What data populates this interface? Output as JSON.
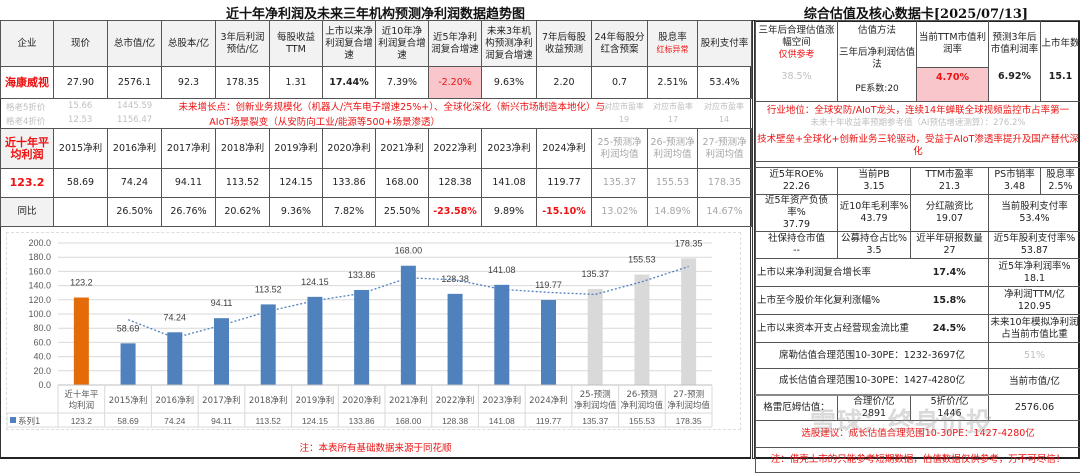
{
  "left_title": "近十年净利润及未来三年机构预测净利润数据趋势图",
  "right_title": "综合估值及核心数据卡[2025/07/13]",
  "main_table": {
    "headers": [
      "企业",
      "现价",
      "总市值/亿",
      "总股本/亿",
      "3年后利润预估/亿",
      "每股收益TTM",
      "上市以来净利润复合增速",
      "近10年净利润复合增速",
      "近5年净利润复合增速",
      "未来3年机构预测净利润复合增速",
      "7年后每股收益预测",
      "24年每股分红含预案",
      "股息率",
      "股利支付率"
    ],
    "dividend_note": "红标异常",
    "row": [
      "海康威视",
      "27.90",
      "2576.1",
      "92.3",
      "178.35",
      "1.31",
      "17.44%",
      "7.39%",
      "-2.20%",
      "9.63%",
      "2.20",
      "0.7",
      "2.51%",
      "53.4%"
    ],
    "graham_rows": [
      [
        "格老5折价",
        "15.66",
        "1445.59"
      ],
      [
        "格老4折价",
        "12.53",
        "1156.47"
      ]
    ],
    "growth_points_line1": "未来增长点：创新业务规模化（机器人/汽车电子增速25%+）、全球化深化（新兴市场制造本地化）与",
    "growth_points_line2": "AIoT场景裂变（从安防向工业/能源等500+场景渗透）",
    "pe_labels": [
      "对应市盈率",
      "对应市盈率",
      "对应市盈率"
    ],
    "pe_values": [
      "19",
      "17",
      "14"
    ]
  },
  "profit_table": {
    "avg_label": "近十年平均利润",
    "headers": [
      "2015净利",
      "2016净利",
      "2017净利",
      "2018净利",
      "2019净利",
      "2020净利",
      "2021净利",
      "2022净利",
      "2023净利",
      "2024净利",
      "25-预测净利润均值",
      "26-预测净利润均值",
      "27-预测净利润均值"
    ],
    "avg_value": "123.2",
    "values": [
      "58.69",
      "74.24",
      "94.11",
      "113.52",
      "124.15",
      "133.86",
      "168.00",
      "128.38",
      "141.08",
      "119.77",
      "135.37",
      "155.53",
      "178.35"
    ],
    "yoy_label": "同比",
    "yoy": [
      "",
      "26.50%",
      "26.76%",
      "20.62%",
      "9.36%",
      "7.82%",
      "25.50%",
      "-23.58%",
      "9.89%",
      "-15.10%",
      "13.02%",
      "14.89%",
      "14.67%"
    ]
  },
  "chart_data": {
    "type": "bar",
    "title": "",
    "categories": [
      "近十年平均利润",
      "2015净利",
      "2016净利",
      "2017净利",
      "2018净利",
      "2019净利",
      "2020净利",
      "2021净利",
      "2022净利",
      "2023净利",
      "2024净利",
      "25-预测净利润均值",
      "26-预测净利润均值",
      "27-预测净利润均值"
    ],
    "series": [
      {
        "name": "系列1",
        "values": [
          123.2,
          58.69,
          74.24,
          94.11,
          113.52,
          124.15,
          133.86,
          168.0,
          128.38,
          141.08,
          119.77,
          135.37,
          155.53,
          178.35
        ]
      }
    ],
    "bar_colors": [
      "#e36c09",
      "#4f81bd",
      "#4f81bd",
      "#4f81bd",
      "#4f81bd",
      "#4f81bd",
      "#4f81bd",
      "#4f81bd",
      "#4f81bd",
      "#4f81bd",
      "#4f81bd",
      "#d9d9d9",
      "#d9d9d9",
      "#d9d9d9"
    ],
    "trendline": "moving average (dotted)",
    "ylim": [
      0,
      200
    ],
    "yticks": [
      "0.0",
      "20.0",
      "40.0",
      "60.0",
      "80.0",
      "100.0",
      "120.0",
      "140.0",
      "160.0",
      "180.0",
      "200.0"
    ],
    "grid": true,
    "legend": "data table below axis",
    "xlabel": "",
    "ylabel": ""
  },
  "chart_note": "注：本表所有基础数据来源于同花顺",
  "legend_label": "系列1",
  "card": {
    "upside_label": "三年后合理估值涨幅空间",
    "upside_note": "仅供参考",
    "upside_value": "38.5%",
    "method_label": "估值方法",
    "method_value": "三年后净利润估值法",
    "pe_coef": "PE系数:20",
    "ttm_yield_label": "当前TTM市值利润率",
    "ttm_yield_value": "4.70%",
    "yield3_label": "预测3年后市值利润率",
    "yield3_value": "6.92%",
    "years_label": "上市年数",
    "years_value": "15.1",
    "industry": "行业地位：全球安防/AIoT龙头，连续14年蝉联全球视频监控市占率第一",
    "ai_ref": "未来十年收益率预期参考值（AI预估增速测算）：276.2%",
    "drivers": "技术壁垒+全球化+创新业务三轮驱动，受益于AIoT渗透率提升及国产替代深化",
    "metrics": [
      [
        {
          "l": "近5年ROE%",
          "v": "22.26"
        },
        {
          "l": "当前PB",
          "v": "3.15"
        },
        {
          "l": "TTM市盈率",
          "v": "21.3"
        },
        {
          "l": "PS市销率",
          "v": "3.48"
        },
        {
          "l": "股息率",
          "v": "2.5%"
        }
      ],
      [
        {
          "l": "近5年资产负债率%",
          "v": "37.79"
        },
        {
          "l": "近10年毛利率%",
          "v": "43.79"
        },
        {
          "l": "分红融资比",
          "v": "19.07"
        },
        {
          "l": "当前股利支付率",
          "v": "53.4%"
        }
      ],
      [
        {
          "l": "社保持仓市值",
          "v": "--"
        },
        {
          "l": "公募持仓占比%",
          "v": "3.5"
        },
        {
          "l": "近半年研报数量",
          "v": "27"
        },
        {
          "l": "近5年股利支付率%",
          "v": "53.87"
        }
      ]
    ],
    "cagr_label": "上市以来净利润复合增长率",
    "cagr_value": "17.4%",
    "net_margin_label": "近5年净利润率%",
    "net_margin_value": "18.1",
    "price_cagr_label": "上市至今股价年化复利涨幅%",
    "price_cagr_value": "15.8%",
    "ttm_profit_label": "净利润TTM/亿",
    "ttm_profit_value": "120.95",
    "capex_label": "上市以来资本开支占经营现金流比重",
    "capex_value": "24.5%",
    "sim_label": "未来10年模拟净利润占当前市值比重",
    "sim_value": "51%",
    "shiller": "席勒估值合理范围10-30PE：1232-3697亿",
    "growth_range": "成长估值合理范围10-30PE：1427-4280亿",
    "mcap_label": "当前市值/亿",
    "mcap_value": "2576.06",
    "graham_label": "格雷厄姆估值：",
    "fair_label": "合理价/亿",
    "fair_value": "2891",
    "half_label": "5折价/亿",
    "half_value": "1446",
    "suggest": "选股建议：成长估值合理范围10-30PE：1427-4280亿",
    "disclaimer": "注：借壳上市的只能参考短期数据，估值数据仅供参考，万不可尽信！",
    "watermark": "雪球：终身价投"
  }
}
